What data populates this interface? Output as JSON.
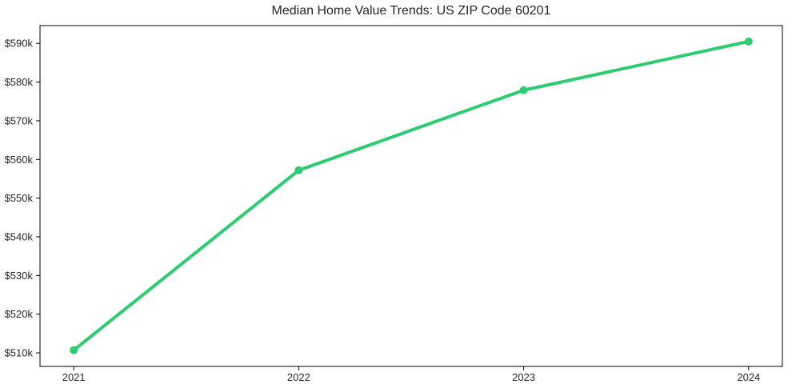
{
  "chart_data": {
    "type": "line",
    "title": "Median Home Value Trends: US ZIP Code 60201",
    "xlabel": "",
    "ylabel": "",
    "x": [
      2021,
      2022,
      2023,
      2024
    ],
    "x_tick_labels": [
      "2021",
      "2022",
      "2023",
      "2024"
    ],
    "values": [
      510700,
      557200,
      577900,
      590500
    ],
    "y_tick_values": [
      510000,
      520000,
      530000,
      540000,
      550000,
      560000,
      570000,
      580000,
      590000
    ],
    "y_tick_labels": [
      "$510k",
      "$520k",
      "$530k",
      "$540k",
      "$550k",
      "$560k",
      "$570k",
      "$580k",
      "$590k"
    ],
    "xlim": [
      2020.85,
      2024.15
    ],
    "ylim": [
      506500,
      594600
    ],
    "grid": false,
    "legend": "none",
    "marker": "circle",
    "line_color": "#2ecc71",
    "axis_color": "#000000",
    "text_color": "#262626",
    "background_color": "#ffffff"
  }
}
